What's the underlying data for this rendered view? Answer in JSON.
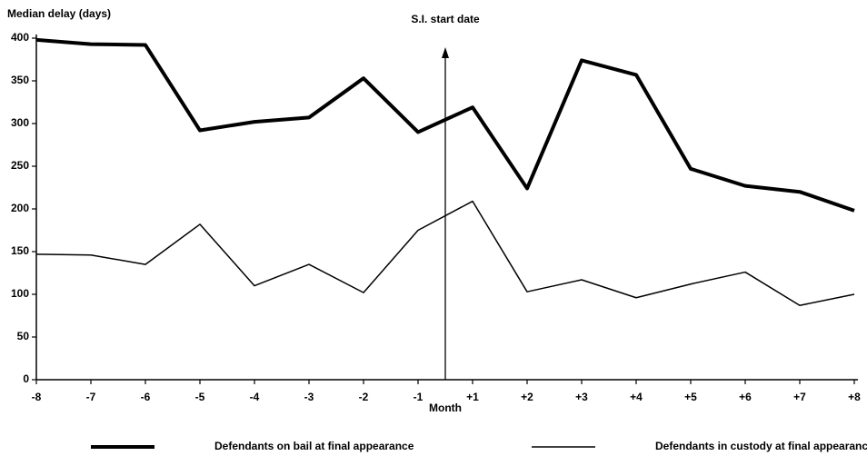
{
  "chart_data": {
    "type": "line",
    "y_label": "Median delay (days)",
    "x_label": "Month",
    "annotation": "S.I. start date",
    "categories": [
      "-8",
      "-7",
      "-6",
      "-5",
      "-4",
      "-3",
      "-2",
      "-1",
      "+1",
      "+2",
      "+3",
      "+4",
      "+5",
      "+6",
      "+7",
      "+8"
    ],
    "series": [
      {
        "name": "Defendants on bail at final appearance",
        "color": "#000000",
        "line_width": 4,
        "values": [
          398,
          393,
          392,
          292,
          302,
          307,
          353,
          290,
          319,
          224,
          374,
          357,
          247,
          227,
          220,
          198
        ]
      },
      {
        "name": "Defendants in custody at final appearance",
        "color": "#000000",
        "line_width": 1.5,
        "values": [
          147,
          146,
          135,
          182,
          110,
          135,
          102,
          175,
          209,
          103,
          117,
          96,
          112,
          126,
          87,
          100
        ]
      }
    ],
    "ylim": [
      0,
      400
    ],
    "yticks": [
      0,
      50,
      100,
      150,
      200,
      250,
      300,
      350,
      400
    ],
    "legend": "bottom"
  }
}
